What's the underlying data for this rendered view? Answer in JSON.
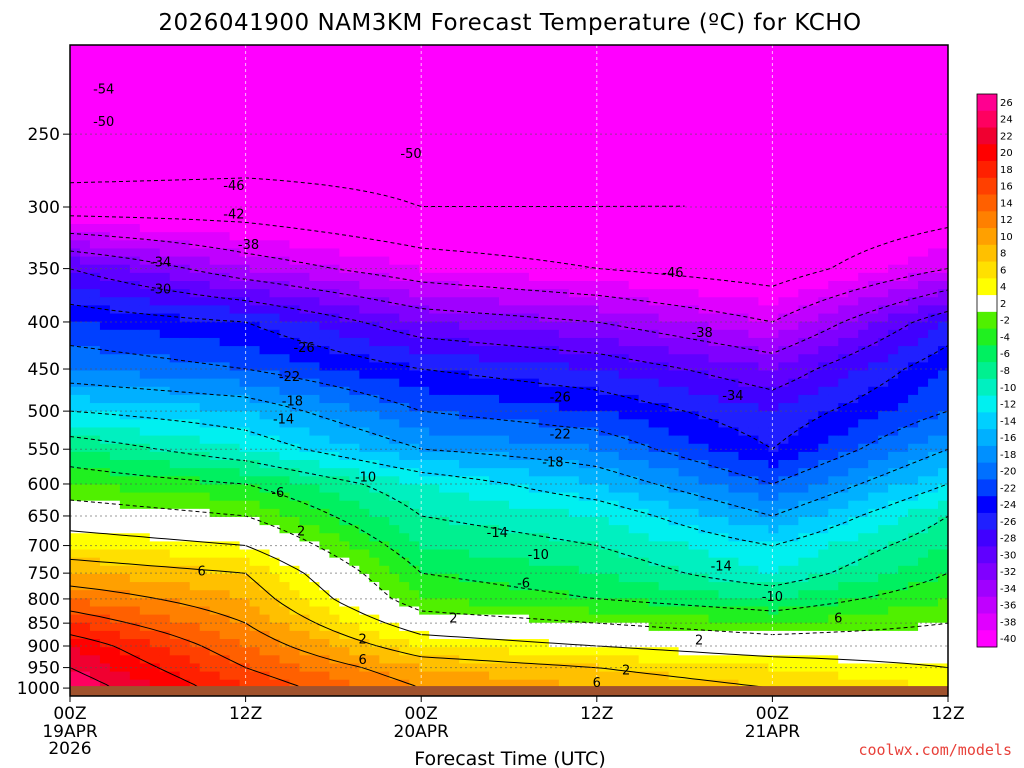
{
  "chart_data": {
    "type": "heatmap",
    "title": "2026041900 NAM3KM Forecast Temperature (ºC) for KCHO",
    "xlabel": "Forecast Time (UTC)",
    "ylabel": "",
    "credit": "coolwx.com/models",
    "x_unit": "hours since 2026-04-19 00Z",
    "xlim": [
      0,
      60
    ],
    "ylim": [
      1020,
      200
    ],
    "x_ticks": [
      {
        "x": 0,
        "label": "00Z",
        "sub1": "19APR",
        "sub2": "2026"
      },
      {
        "x": 12,
        "label": "12Z",
        "sub1": "",
        "sub2": ""
      },
      {
        "x": 24,
        "label": "00Z",
        "sub1": "20APR",
        "sub2": ""
      },
      {
        "x": 36,
        "label": "12Z",
        "sub1": "",
        "sub2": ""
      },
      {
        "x": 48,
        "label": "00Z",
        "sub1": "21APR",
        "sub2": ""
      },
      {
        "x": 60,
        "label": "12Z",
        "sub1": "",
        "sub2": ""
      }
    ],
    "y_ticks": [
      250,
      300,
      350,
      400,
      450,
      500,
      550,
      600,
      650,
      700,
      750,
      800,
      850,
      900,
      950,
      1000
    ],
    "y_tick_labels": [
      "250",
      "300",
      "350",
      "400",
      "450",
      "500",
      "550",
      "600",
      "650",
      "700",
      "750",
      "800",
      "850",
      "900",
      "950",
      "1000"
    ],
    "surface_pressure": 995,
    "colorbar": {
      "levels": [
        -40,
        -38,
        -36,
        -34,
        -32,
        -30,
        -28,
        -26,
        -24,
        -22,
        -20,
        -18,
        -16,
        -14,
        -12,
        -10,
        -8,
        -6,
        -4,
        -2,
        2,
        4,
        6,
        8,
        10,
        12,
        14,
        16,
        18,
        20,
        22,
        24,
        26
      ],
      "labels": [
        "-40",
        "-38",
        "-36",
        "-34",
        "-32",
        "-30",
        "-28",
        "-26",
        "-24",
        "-22",
        "-20",
        "-18",
        "-16",
        "-14",
        "-12",
        "-10",
        "-8",
        "-6",
        "-4",
        "-2",
        "2",
        "4",
        "6",
        "8",
        "10",
        "12",
        "14",
        "16",
        "18",
        "20",
        "22",
        "24",
        "26"
      ],
      "colors": [
        "#ff00ff",
        "#e000ff",
        "#c000ff",
        "#a000ff",
        "#8000ff",
        "#6000ff",
        "#4000ff",
        "#2020ff",
        "#0000ff",
        "#0040ff",
        "#0070ff",
        "#0090ff",
        "#00b0ff",
        "#00d0ff",
        "#00f0f0",
        "#00f0c0",
        "#00f090",
        "#00f060",
        "#20f020",
        "#50f000",
        "#ffffff",
        "#ffff00",
        "#ffe000",
        "#ffc000",
        "#ffa000",
        "#ff8000",
        "#ff6000",
        "#ff4000",
        "#ff2000",
        "#ff0000",
        "#f00030",
        "#ff0060",
        "#ff0090"
      ]
    },
    "temperature_by_level": [
      {
        "pressure": 250,
        "x": [
          0,
          12,
          24,
          36,
          48,
          60
        ],
        "t": [
          -50,
          -49,
          -48,
          -47,
          -45,
          -46
        ]
      },
      {
        "pressure": 300,
        "x": [
          0,
          12,
          24,
          36,
          48,
          60
        ],
        "t": [
          -44,
          -44,
          -46,
          -46,
          -46,
          -44
        ]
      },
      {
        "pressure": 350,
        "x": [
          0,
          12,
          24,
          36,
          48,
          60
        ],
        "t": [
          -30,
          -36,
          -40,
          -42,
          -44,
          -38
        ]
      },
      {
        "pressure": 400,
        "x": [
          0,
          12,
          24,
          36,
          48,
          60
        ],
        "t": [
          -24,
          -26,
          -32,
          -34,
          -38,
          -28
        ]
      },
      {
        "pressure": 450,
        "x": [
          0,
          12,
          24,
          36,
          48,
          60
        ],
        "t": [
          -20,
          -22,
          -26,
          -28,
          -32,
          -24
        ]
      },
      {
        "pressure": 500,
        "x": [
          0,
          12,
          24,
          36,
          48,
          60
        ],
        "t": [
          -14,
          -16,
          -22,
          -24,
          -28,
          -22
        ]
      },
      {
        "pressure": 550,
        "x": [
          0,
          12,
          24,
          36,
          48,
          60
        ],
        "t": [
          -8,
          -12,
          -18,
          -20,
          -26,
          -18
        ]
      },
      {
        "pressure": 600,
        "x": [
          0,
          12,
          24,
          36,
          48,
          60
        ],
        "t": [
          -4,
          -6,
          -12,
          -16,
          -22,
          -14
        ]
      },
      {
        "pressure": 650,
        "x": [
          0,
          12,
          24,
          36,
          48,
          60
        ],
        "t": [
          0,
          -2,
          -10,
          -12,
          -18,
          -10
        ]
      },
      {
        "pressure": 700,
        "x": [
          0,
          12,
          24,
          36,
          48,
          60
        ],
        "t": [
          4,
          2,
          -8,
          -10,
          -14,
          -8
        ]
      },
      {
        "pressure": 750,
        "x": [
          0,
          12,
          24,
          36,
          48,
          60
        ],
        "t": [
          8,
          6,
          -6,
          -8,
          -12,
          -6
        ]
      },
      {
        "pressure": 800,
        "x": [
          0,
          12,
          24,
          36,
          48,
          60
        ],
        "t": [
          12,
          8,
          -4,
          -6,
          -8,
          -4
        ]
      },
      {
        "pressure": 850,
        "x": [
          0,
          12,
          24,
          36,
          48,
          60
        ],
        "t": [
          16,
          10,
          0,
          -2,
          -4,
          -2
        ]
      },
      {
        "pressure": 900,
        "x": [
          0,
          12,
          24,
          36,
          48,
          60
        ],
        "t": [
          20,
          12,
          4,
          2,
          0,
          0
        ]
      },
      {
        "pressure": 950,
        "x": [
          0,
          12,
          24,
          36,
          48,
          60
        ],
        "t": [
          22,
          14,
          8,
          6,
          4,
          2
        ]
      },
      {
        "pressure": 1000,
        "x": [
          0,
          12,
          24,
          36,
          48,
          60
        ],
        "t": [
          24,
          16,
          10,
          8,
          6,
          4
        ]
      }
    ],
    "contour_labels": [
      {
        "text": "-54",
        "x": 2.3,
        "p": 223
      },
      {
        "text": "-50",
        "x": 2.3,
        "p": 242
      },
      {
        "text": "-50",
        "x": 23.3,
        "p": 262
      },
      {
        "text": "-46",
        "x": 11.2,
        "p": 284
      },
      {
        "text": "-42",
        "x": 11.2,
        "p": 305
      },
      {
        "text": "-38",
        "x": 12.2,
        "p": 329
      },
      {
        "text": "-34",
        "x": 6.2,
        "p": 344
      },
      {
        "text": "-30",
        "x": 6.2,
        "p": 368
      },
      {
        "text": "-46",
        "x": 41.2,
        "p": 353
      },
      {
        "text": "-38",
        "x": 43.2,
        "p": 410
      },
      {
        "text": "-34",
        "x": 45.3,
        "p": 480
      },
      {
        "text": "-26",
        "x": 16.0,
        "p": 426
      },
      {
        "text": "-22",
        "x": 15.0,
        "p": 458
      },
      {
        "text": "-26",
        "x": 33.5,
        "p": 482
      },
      {
        "text": "-18",
        "x": 15.2,
        "p": 487
      },
      {
        "text": "-14",
        "x": 14.6,
        "p": 509
      },
      {
        "text": "-22",
        "x": 33.5,
        "p": 529
      },
      {
        "text": "-18",
        "x": 33.0,
        "p": 567
      },
      {
        "text": "-10",
        "x": 20.2,
        "p": 589
      },
      {
        "text": "-6",
        "x": 14.2,
        "p": 612
      },
      {
        "text": "-14",
        "x": 29.2,
        "p": 677
      },
      {
        "text": "-10",
        "x": 32.0,
        "p": 715
      },
      {
        "text": "-14",
        "x": 44.5,
        "p": 736
      },
      {
        "text": "-6",
        "x": 31.0,
        "p": 768
      },
      {
        "text": "-10",
        "x": 48.0,
        "p": 794
      },
      {
        "text": "6",
        "x": 52.5,
        "p": 838
      },
      {
        "text": "2",
        "x": 15.8,
        "p": 674
      },
      {
        "text": "6",
        "x": 9.0,
        "p": 745
      },
      {
        "text": "2",
        "x": 26.2,
        "p": 838
      },
      {
        "text": "2",
        "x": 20.0,
        "p": 883
      },
      {
        "text": "2",
        "x": 43.0,
        "p": 886
      },
      {
        "text": "6",
        "x": 20.0,
        "p": 930
      },
      {
        "text": "2",
        "x": 38.0,
        "p": 955
      },
      {
        "text": "6",
        "x": 36.0,
        "p": 985
      }
    ]
  }
}
